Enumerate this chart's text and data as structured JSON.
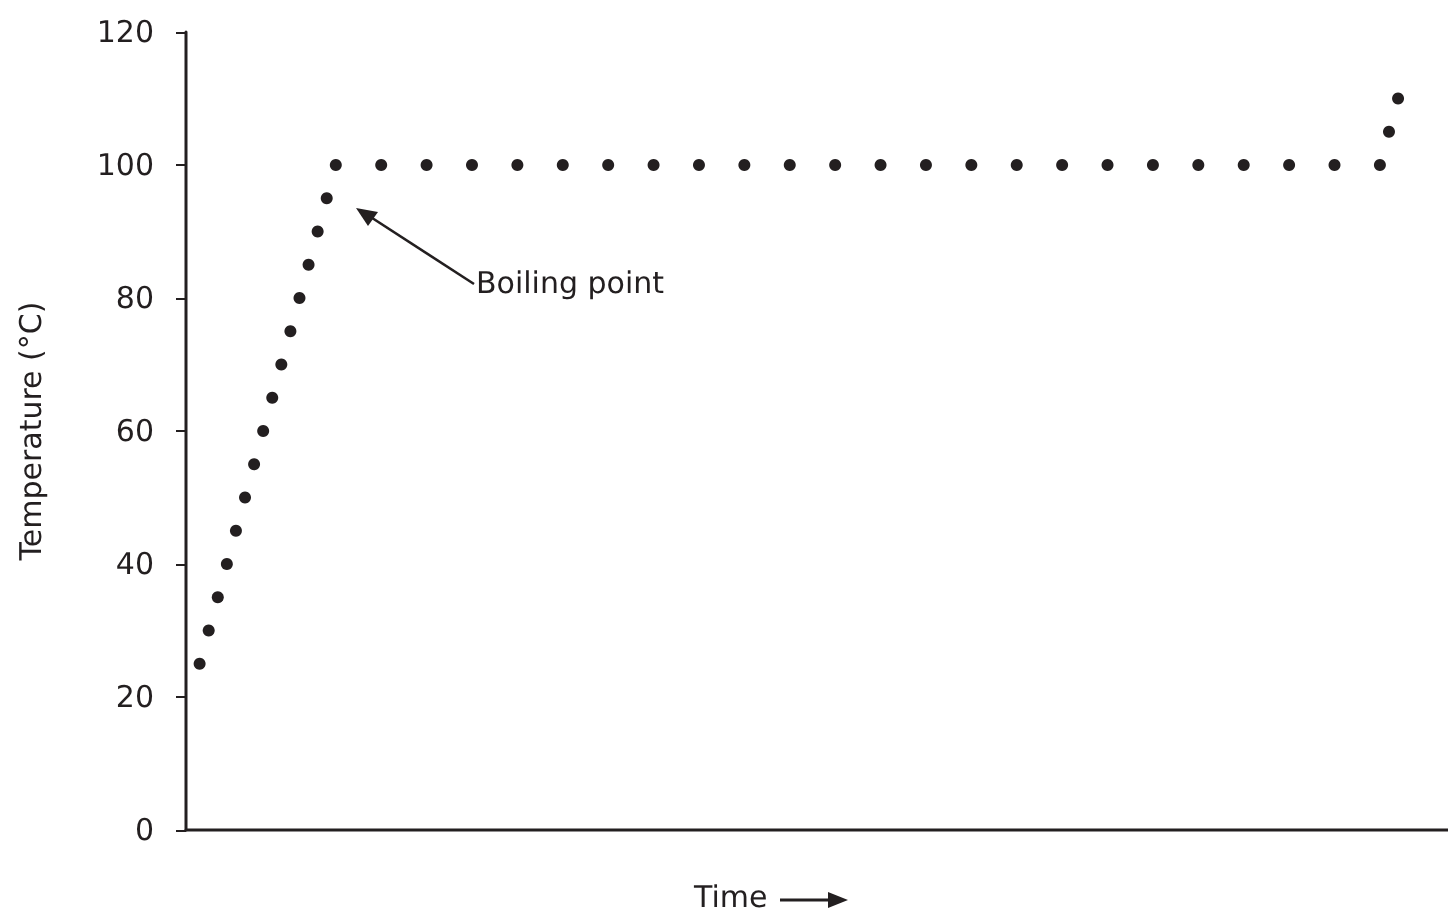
{
  "chart_data": {
    "type": "scatter",
    "xlabel": "Time",
    "ylabel": "Temperature (°C)",
    "categories": [
      null,
      null,
      null,
      null,
      null,
      null,
      null,
      null,
      null,
      null,
      null,
      null,
      null,
      null,
      null,
      null,
      null,
      null,
      null,
      null,
      null,
      null,
      null,
      null,
      null,
      null,
      null,
      null,
      null,
      null,
      null,
      null,
      null,
      null,
      null,
      null,
      null,
      null,
      null,
      null,
      null,
      null,
      null,
      null,
      null,
      null,
      null,
      null,
      null,
      null,
      null,
      null,
      null,
      null,
      null,
      null,
      null,
      null,
      null,
      null,
      null,
      null,
      null,
      null,
      null,
      null,
      null,
      null,
      null,
      null,
      null,
      null,
      null,
      null,
      null,
      null,
      null,
      null,
      null,
      null,
      null,
      null,
      null,
      null,
      null,
      null,
      null,
      null,
      null,
      null,
      null,
      null,
      null,
      null,
      null,
      null,
      null,
      null,
      null,
      null,
      null,
      null,
      null,
      null,
      null,
      null,
      null,
      null,
      null,
      null,
      null,
      null,
      null,
      null,
      null,
      null,
      null,
      null,
      null,
      null,
      null,
      null,
      null,
      null,
      null,
      null,
      null,
      null,
      null,
      null,
      null,
      null,
      null,
      null,
      null,
      null,
      null,
      null,
      null
    ],
    "values": [
      null,
      25,
      30,
      35,
      40,
      45,
      50,
      55,
      60,
      65,
      70,
      75,
      80,
      85,
      90,
      95,
      100,
      null,
      null,
      null,
      null,
      100,
      null,
      null,
      null,
      null,
      100,
      null,
      null,
      null,
      null,
      100,
      null,
      null,
      null,
      null,
      100,
      null,
      null,
      null,
      null,
      100,
      null,
      null,
      null,
      null,
      100,
      null,
      null,
      null,
      null,
      100,
      null,
      null,
      null,
      null,
      100,
      null,
      null,
      null,
      null,
      100,
      null,
      null,
      null,
      null,
      100,
      null,
      null,
      null,
      null,
      100,
      null,
      null,
      null,
      null,
      100,
      null,
      null,
      null,
      null,
      100,
      null,
      null,
      null,
      null,
      100,
      null,
      null,
      null,
      null,
      100,
      null,
      null,
      null,
      null,
      100,
      null,
      null,
      null,
      null,
      100,
      null,
      null,
      null,
      null,
      100,
      null,
      null,
      null,
      null,
      100,
      null,
      null,
      null,
      null,
      100,
      null,
      null,
      null,
      null,
      100,
      null,
      null,
      null,
      null,
      100,
      null,
      null,
      null,
      null,
      100,
      105,
      110,
      null,
      null,
      null,
      null,
      null
    ],
    "color": "#231f20",
    "marker": "circle",
    "ylim": [
      0,
      120
    ],
    "yticks": [
      0,
      20,
      40,
      60,
      80,
      100,
      120
    ],
    "tick_labels": "y",
    "annotations": [
      "Boiling point"
    ]
  }
}
